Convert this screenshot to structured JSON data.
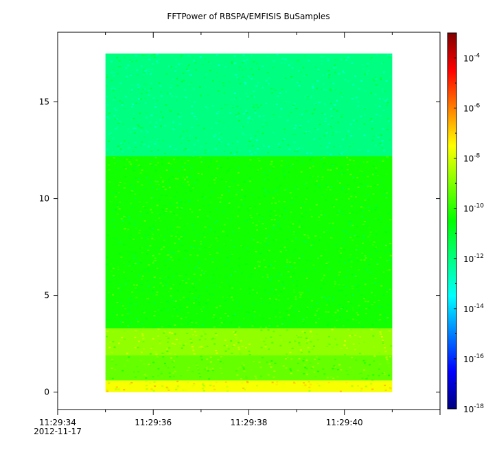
{
  "chart_data": {
    "type": "heatmap",
    "title": "FFTPower of RBSPA/EMFISIS  BuSamples",
    "xlabel": "",
    "ylabel": "",
    "x_ticks": [
      "11:29:34",
      "11:29:36",
      "11:29:38",
      "11:29:40"
    ],
    "x_first_tick_date": "2012-11-17",
    "x_range_seconds": [
      34,
      42
    ],
    "data_time_range_seconds": [
      35,
      41
    ],
    "y_ticks": [
      0,
      5,
      10,
      15
    ],
    "ylim": [
      -0.9,
      18.6
    ],
    "data_y_range": [
      0,
      17.5
    ],
    "colorbar": {
      "scale": "log",
      "range": [
        1e-18,
        0.001
      ],
      "tick_labels": [
        {
          "base": "10",
          "exp": "-4"
        },
        {
          "base": "10",
          "exp": "-6"
        },
        {
          "base": "10",
          "exp": "-8"
        },
        {
          "base": "10",
          "exp": "-10"
        },
        {
          "base": "10",
          "exp": "-12"
        },
        {
          "base": "10",
          "exp": "-14"
        },
        {
          "base": "10",
          "exp": "-16"
        },
        {
          "base": "10",
          "exp": "-18"
        }
      ],
      "tick_exponents": [
        -4,
        -6,
        -8,
        -10,
        -12,
        -14,
        -16,
        -18
      ],
      "colormap": [
        "#00007f",
        "#0000ff",
        "#0080ff",
        "#00ffff",
        "#00ff80",
        "#00ff00",
        "#80ff00",
        "#ffff00",
        "#ff8000",
        "#ff0000",
        "#800000"
      ]
    },
    "bands": [
      {
        "y_range": [
          12.2,
          17.5
        ],
        "log10_power": -12.0
      },
      {
        "y_range": [
          3.3,
          12.2
        ],
        "log10_power": -10.3
      },
      {
        "y_range": [
          1.9,
          3.3
        ],
        "log10_power": -8.8
      },
      {
        "y_range": [
          0.6,
          1.9
        ],
        "log10_power": -9.3
      },
      {
        "y_range": [
          0.0,
          0.6
        ],
        "log10_power": -7.6
      }
    ]
  }
}
